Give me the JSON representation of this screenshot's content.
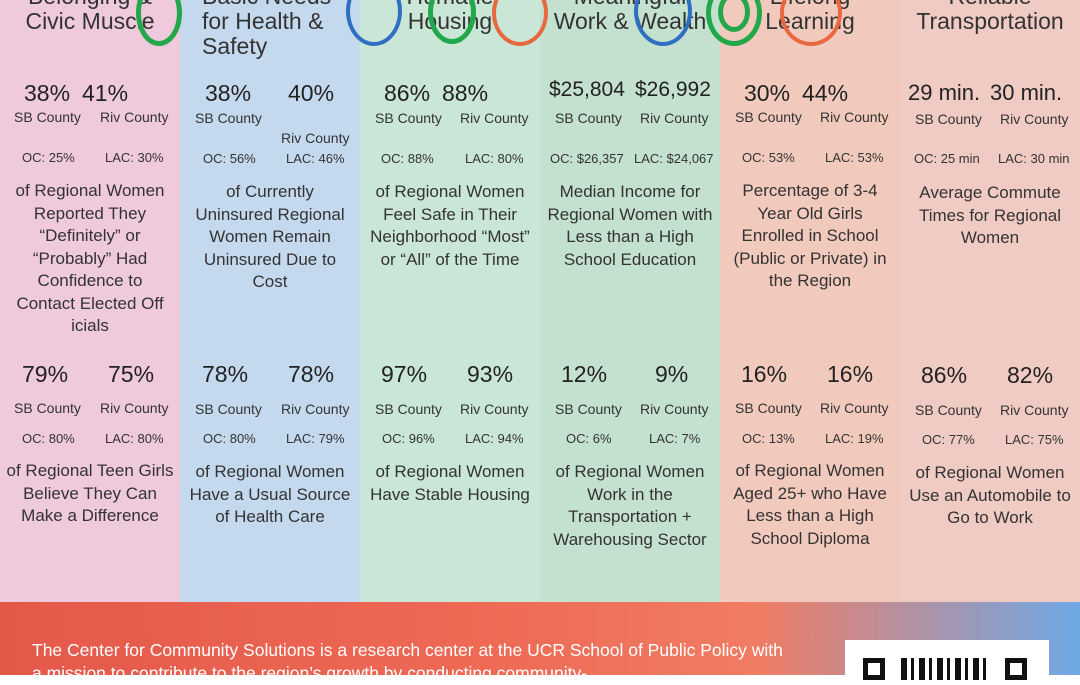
{
  "columns": [
    {
      "title": "Belonging &\nCivic Muscle",
      "top": {
        "sb": "38%",
        "riv": "41%",
        "sb_label": "SB County",
        "riv_label": "Riv County",
        "oc": "OC: 25%",
        "lac": "LAC: 30%",
        "desc": "of Regional Women Reported They “Definitely” or “Probably” Had Confidence to Contact Elected Off icials"
      },
      "bottom": {
        "sb": "79%",
        "riv": "75%",
        "sb_label": "SB County",
        "riv_label": "Riv County",
        "oc": "OC: 80%",
        "lac": "LAC: 80%",
        "desc": "of Regional Teen Girls Believe They Can Make a Difference"
      }
    },
    {
      "title": "Basic Needs\nfor Health &\nSafety",
      "top": {
        "sb": "38%",
        "riv": "40%",
        "sb_label": "SB County",
        "riv_label": "Riv County",
        "oc": "OC: 56%",
        "lac": "LAC: 46%",
        "desc": "of Currently Uninsured Regional Women Remain Uninsured Due to Cost"
      },
      "bottom": {
        "sb": "78%",
        "riv": "78%",
        "sb_label": "SB County",
        "riv_label": "Riv County",
        "oc": "OC: 80%",
        "lac": "LAC: 79%",
        "desc": "of Regional Women Have a Usual Source of Health Care"
      }
    },
    {
      "title": "Humane\nHousing",
      "top": {
        "sb": "86%",
        "riv": "88%",
        "sb_label": "SB County",
        "riv_label": "Riv County",
        "oc": "OC: 88%",
        "lac": "LAC: 80%",
        "desc": "of Regional Women Feel Safe in Their Neighborhood “Most” or “All” of the Time"
      },
      "bottom": {
        "sb": "97%",
        "riv": "93%",
        "sb_label": "SB County",
        "riv_label": "Riv County",
        "oc": "OC: 96%",
        "lac": "LAC: 94%",
        "desc": "of Regional Women Have Stable Housing"
      }
    },
    {
      "title": "Meaningful\nWork & Wealth",
      "top": {
        "sb": "$25,804",
        "riv": "$26,992",
        "sb_label": "SB County",
        "riv_label": "Riv County",
        "oc": "OC: $26,357",
        "lac": "LAC: $24,067",
        "desc": "Median Income for Regional Women with Less than a High School Education"
      },
      "bottom": {
        "sb": "12%",
        "riv": "9%",
        "sb_label": "SB County",
        "riv_label": "Riv County",
        "oc": "OC: 6%",
        "lac": "LAC: 7%",
        "desc": "of Regional Women Work in the Transportation + Warehousing Sector"
      }
    },
    {
      "title": "Lifelong\nLearning",
      "top": {
        "sb": "30%",
        "riv": "44%",
        "sb_label": "SB County",
        "riv_label": "Riv County",
        "oc": "OC: 53%",
        "lac": "LAC: 53%",
        "desc": "Percentage of 3-4 Year Old Girls Enrolled in School (Public or Private) in the Region"
      },
      "bottom": {
        "sb": "16%",
        "riv": "16%",
        "sb_label": "SB County",
        "riv_label": "Riv County",
        "oc": "OC: 13%",
        "lac": "LAC: 19%",
        "desc": "of Regional Women Aged 25+ who Have Less than a High School Diploma"
      }
    },
    {
      "title": "Reliable\nTransportation",
      "top": {
        "sb": "29 min.",
        "riv": "30 min.",
        "sb_label": "SB County",
        "riv_label": "Riv County",
        "oc": "OC: 25 min",
        "lac": "LAC: 30 min",
        "desc": "Average Commute Times for Regional Women"
      },
      "bottom": {
        "sb": "86%",
        "riv": "82%",
        "sb_label": "SB County",
        "riv_label": "Riv County",
        "oc": "OC: 77%",
        "lac": "LAC: 75%",
        "desc": "of Regional Women Use an Automobile to Go to Work"
      }
    }
  ],
  "footer": {
    "text": "The Center for Community Solutions is a research center at the UCR School of Public Policy with a mission to contribute to the region’s growth by conducting community-"
  },
  "colors": {
    "pink": "#efc9dc",
    "blue": "#c4d9ee",
    "green": "#c9e6d6",
    "salmon": "#f2cabd",
    "ring_blue": "#2f6fc2",
    "ring_green": "#22a84a",
    "ring_orange": "#e8683f"
  }
}
